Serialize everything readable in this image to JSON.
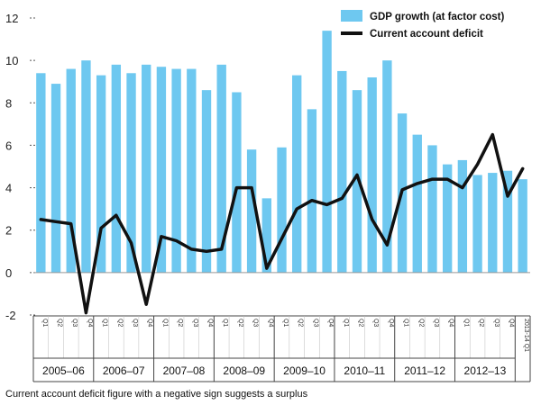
{
  "chart_data": {
    "type": "bar+line",
    "title": "",
    "xlabel": "",
    "ylabel": "",
    "ylim": [
      -2,
      12
    ],
    "yticks": [
      -2,
      0,
      2,
      4,
      6,
      8,
      10,
      12
    ],
    "ytick_labels": [
      "-2",
      "0",
      "2",
      "4",
      "6",
      "8",
      "10",
      "12"
    ],
    "quarter_labels": [
      "Q1",
      "Q2",
      "Q3",
      "Q4",
      "Q1",
      "Q2",
      "Q3",
      "Q4",
      "Q1",
      "Q2",
      "Q3",
      "Q4",
      "Q1",
      "Q2",
      "Q3",
      "Q4",
      "Q1",
      "Q2",
      "Q3",
      "Q4",
      "Q1",
      "Q2",
      "Q3",
      "Q4",
      "Q1",
      "Q2",
      "Q3",
      "Q4",
      "Q1",
      "Q2",
      "Q3",
      "Q4",
      "2013-14 Q1"
    ],
    "year_groups": [
      {
        "label": "2005–06",
        "quarters": 4
      },
      {
        "label": "2006–07",
        "quarters": 4
      },
      {
        "label": "2007–08",
        "quarters": 4
      },
      {
        "label": "2008–09",
        "quarters": 4
      },
      {
        "label": "2009–10",
        "quarters": 4
      },
      {
        "label": "2010–11",
        "quarters": 4
      },
      {
        "label": "2011–12",
        "quarters": 4
      },
      {
        "label": "2012–13",
        "quarters": 4
      }
    ],
    "series": [
      {
        "name": "GDP growth (at factor cost)",
        "kind": "bar",
        "color": "#6ec8f0",
        "values": [
          9.4,
          8.9,
          9.6,
          10.0,
          9.3,
          9.8,
          9.4,
          9.8,
          9.7,
          9.6,
          9.6,
          8.6,
          9.8,
          8.5,
          5.8,
          3.5,
          5.9,
          9.3,
          7.7,
          11.4,
          9.5,
          8.6,
          9.2,
          10.0,
          7.5,
          6.5,
          6.0,
          5.1,
          5.3,
          4.6,
          4.7,
          4.8,
          4.4
        ]
      },
      {
        "name": "Current account deficit",
        "kind": "line",
        "color": "#111111",
        "values": [
          2.5,
          2.4,
          2.3,
          -1.9,
          2.1,
          2.7,
          1.4,
          -1.5,
          1.7,
          1.5,
          1.1,
          1.0,
          1.1,
          4.0,
          4.0,
          0.2,
          1.6,
          3.0,
          3.4,
          3.2,
          3.5,
          4.6,
          2.5,
          1.3,
          3.9,
          4.2,
          4.4,
          4.4,
          4.0,
          5.1,
          6.5,
          3.6,
          4.9
        ]
      }
    ],
    "legend_position": "top-right",
    "footnote": "Current account deficit figure with a negative sign suggests a surplus"
  }
}
